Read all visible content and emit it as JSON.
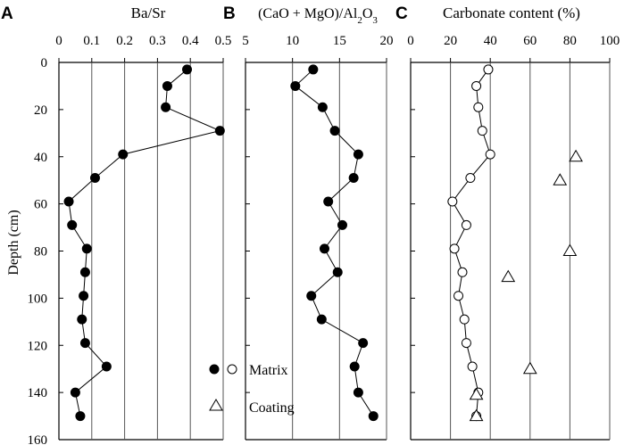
{
  "figure": {
    "depth_axis": {
      "label": "Depth (cm)",
      "ticks": [
        0,
        20,
        40,
        60,
        80,
        100,
        120,
        140,
        160
      ],
      "lim": [
        0,
        160
      ],
      "inverted": true
    },
    "legend": {
      "matrix_label": "Matrix",
      "coating_label": "Coating"
    }
  },
  "chart_data": [
    {
      "panel_letter": "A",
      "type": "line",
      "title": "Ba/Sr",
      "xlim": [
        0,
        0.5
      ],
      "xticks": [
        0,
        0.1,
        0.2,
        0.3,
        0.4,
        0.5
      ],
      "xtick_labels": [
        "0",
        "0.1",
        "0.2",
        "0.3",
        "0.4",
        "0.5"
      ],
      "grid": "vertical",
      "series": [
        {
          "name": "Matrix",
          "marker": "filled-circle",
          "points": [
            [
              0.39,
              3
            ],
            [
              0.33,
              10
            ],
            [
              0.325,
              19
            ],
            [
              0.49,
              29
            ],
            [
              0.195,
              39
            ],
            [
              0.11,
              49
            ],
            [
              0.03,
              59
            ],
            [
              0.04,
              69
            ],
            [
              0.085,
              79
            ],
            [
              0.08,
              89
            ],
            [
              0.075,
              99
            ],
            [
              0.07,
              109
            ],
            [
              0.08,
              119
            ],
            [
              0.145,
              129
            ],
            [
              0.05,
              140
            ],
            [
              0.065,
              150
            ]
          ]
        }
      ]
    },
    {
      "panel_letter": "B",
      "type": "line",
      "title": "(CaO + MgO)/Al2O3",
      "xlim": [
        5,
        20
      ],
      "xticks": [
        5,
        10,
        15,
        20
      ],
      "xtick_labels": [
        "5",
        "10",
        "15",
        "20"
      ],
      "grid": "vertical",
      "series": [
        {
          "name": "Matrix",
          "marker": "filled-circle",
          "points": [
            [
              12.2,
              3
            ],
            [
              10.3,
              10
            ],
            [
              13.2,
              19
            ],
            [
              14.5,
              29
            ],
            [
              17.0,
              39
            ],
            [
              16.5,
              49
            ],
            [
              13.8,
              59
            ],
            [
              15.3,
              69
            ],
            [
              13.4,
              79
            ],
            [
              14.8,
              89
            ],
            [
              12.0,
              99
            ],
            [
              13.1,
              109
            ],
            [
              17.5,
              119
            ],
            [
              16.6,
              129
            ],
            [
              17.0,
              140
            ],
            [
              18.6,
              150
            ]
          ]
        }
      ]
    },
    {
      "panel_letter": "C",
      "type": "scatter",
      "title": "Carbonate content (%)",
      "xlim": [
        0,
        100
      ],
      "xticks": [
        0,
        20,
        40,
        60,
        80,
        100
      ],
      "xtick_labels": [
        "0",
        "20",
        "40",
        "60",
        "80",
        "100"
      ],
      "grid": "vertical",
      "series": [
        {
          "name": "Matrix",
          "marker": "open-circle",
          "connected": true,
          "points": [
            [
              39,
              3
            ],
            [
              33,
              10
            ],
            [
              34,
              19
            ],
            [
              36,
              29
            ],
            [
              40,
              39
            ],
            [
              30,
              49
            ],
            [
              21,
              59
            ],
            [
              28,
              69
            ],
            [
              22,
              79
            ],
            [
              26,
              89
            ],
            [
              24,
              99
            ],
            [
              27,
              109
            ],
            [
              28,
              119
            ],
            [
              31,
              129
            ],
            [
              34,
              140
            ],
            [
              33,
              150
            ]
          ]
        },
        {
          "name": "Coating",
          "marker": "open-triangle",
          "connected": false,
          "points": [
            [
              83,
              40
            ],
            [
              75,
              50
            ],
            [
              80,
              80
            ],
            [
              49,
              91
            ],
            [
              60,
              130
            ],
            [
              33,
              141
            ],
            [
              33,
              150
            ]
          ]
        }
      ]
    }
  ]
}
